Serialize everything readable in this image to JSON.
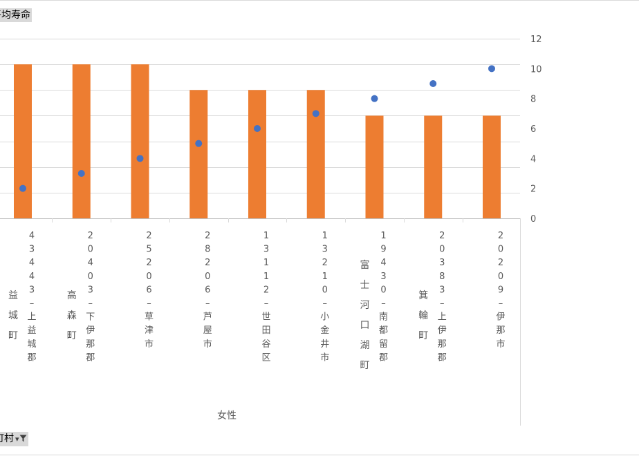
{
  "value_field_label": "平均寿命",
  "row_field_label": "区町村",
  "filter_icon": "filter-dropdown-icon",
  "chart_data": {
    "type": "bar+scatter",
    "gender_label": "女性",
    "categories": [
      {
        "code": "43443",
        "parts": [
          "上",
          "益",
          "城",
          "郡"
        ],
        "prefix": [
          "益",
          "城",
          "町"
        ]
      },
      {
        "code": "20403",
        "parts": [
          "下",
          "伊",
          "那",
          "郡"
        ],
        "prefix": [
          "高",
          "森",
          "町"
        ]
      },
      {
        "code": "25206",
        "parts": [
          "草",
          "津",
          "市"
        ],
        "prefix": []
      },
      {
        "code": "28206",
        "parts": [
          "芦",
          "屋",
          "市"
        ],
        "prefix": []
      },
      {
        "code": "13112",
        "parts": [
          "世",
          "田",
          "谷",
          "区"
        ],
        "prefix": []
      },
      {
        "code": "13210",
        "parts": [
          "小",
          "金",
          "井",
          "市"
        ],
        "prefix": []
      },
      {
        "code": "19430",
        "parts": [
          "南",
          "都",
          "留",
          "郡"
        ],
        "prefix": [
          "富",
          "士",
          "河",
          "口",
          "湖",
          "町"
        ]
      },
      {
        "code": "20383",
        "parts": [
          "上",
          "伊",
          "那",
          "郡"
        ],
        "prefix": [
          "箕",
          "輪",
          "町"
        ]
      },
      {
        "code": "20209",
        "parts": [
          "伊",
          "那",
          "市"
        ],
        "prefix": []
      }
    ],
    "bar_values": [
      6,
      6,
      6,
      5,
      5,
      5,
      4,
      4,
      4
    ],
    "point_values": [
      2,
      3,
      4,
      5,
      6,
      7,
      8,
      9,
      10
    ],
    "y2_ticks": [
      "0",
      "2",
      "4",
      "6",
      "8",
      "10",
      "12"
    ],
    "y2_range": [
      0,
      12
    ],
    "left_axis_range": [
      0,
      7
    ],
    "bar_color": "#ED7D31",
    "point_color": "#4472C4",
    "gridlines": true
  }
}
